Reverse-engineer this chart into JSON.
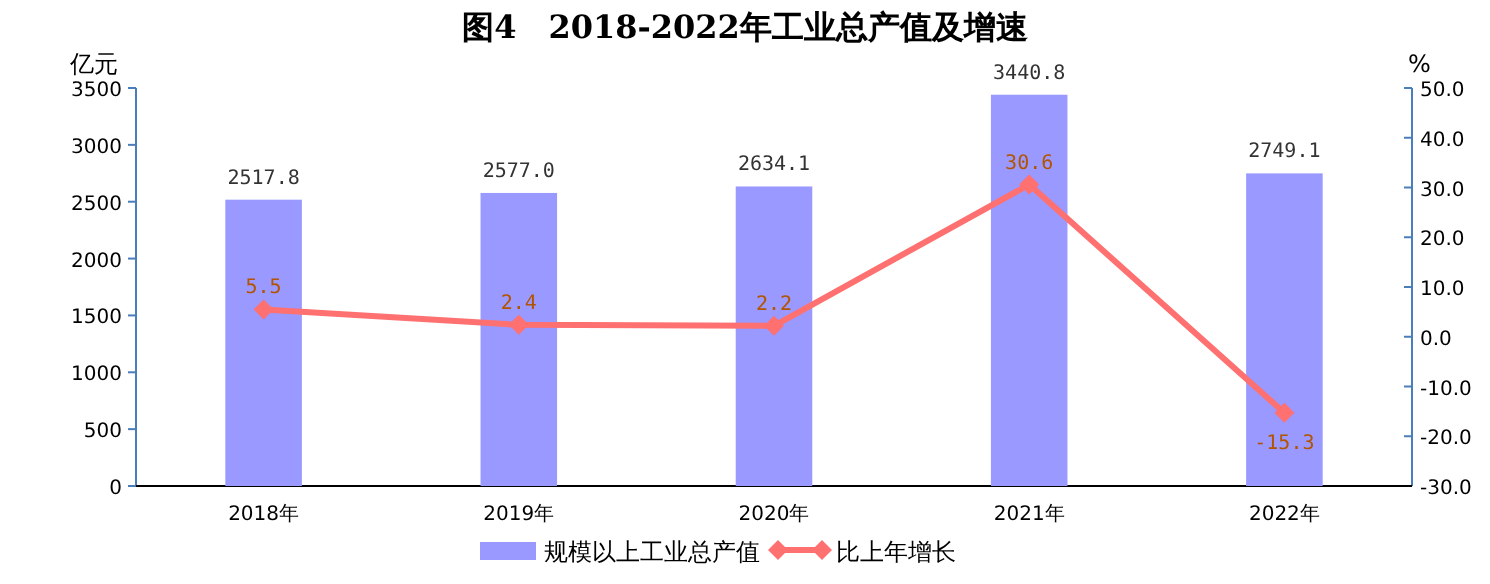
{
  "chart_data": {
    "type": "bar",
    "title": "图4　2018-2022年工业总产值及增速",
    "ylabel": "亿元",
    "y2label": "%",
    "categories": [
      "2018年",
      "2019年",
      "2020年",
      "2021年",
      "2022年"
    ],
    "series": [
      {
        "name": "规模以上工业总产值",
        "color": "#9999ff",
        "values": [
          2517.8,
          2577.0,
          2634.1,
          3440.8,
          2749.1
        ],
        "value_labels": [
          "2517.8",
          "2577.0",
          "2634.1",
          "3440.8",
          "2749.1"
        ]
      },
      {
        "name": "比上年增长",
        "type": "line",
        "axis": "y2",
        "color": "#ff7070",
        "marker": "diamond",
        "values": [
          5.5,
          2.4,
          2.2,
          30.6,
          -15.3
        ],
        "value_labels": [
          "5.5",
          "2.4",
          "2.2",
          "30.6",
          "-15.3"
        ]
      }
    ],
    "ylim": [
      0,
      3500
    ],
    "yticks": [
      0,
      500,
      1000,
      1500,
      2000,
      2500,
      3000,
      3500
    ],
    "y2lim": [
      -30,
      50
    ],
    "y2ticks": [
      {
        "value": -30,
        "label": "-30.0"
      },
      {
        "value": -20,
        "label": "-20.0"
      },
      {
        "value": -10,
        "label": "-10.0"
      },
      {
        "value": 0,
        "label": "0.0"
      },
      {
        "value": 10,
        "label": "10.0"
      },
      {
        "value": 20,
        "label": "20.0"
      },
      {
        "value": 30,
        "label": "30.0"
      },
      {
        "value": 40,
        "label": "40.0"
      },
      {
        "value": 50,
        "label": "50.0"
      }
    ],
    "grid": false,
    "legend": "bottom"
  }
}
